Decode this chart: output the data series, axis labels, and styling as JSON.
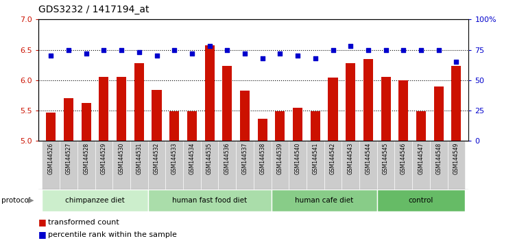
{
  "title": "GDS3232 / 1417194_at",
  "samples": [
    "GSM144526",
    "GSM144527",
    "GSM144528",
    "GSM144529",
    "GSM144530",
    "GSM144531",
    "GSM144532",
    "GSM144533",
    "GSM144534",
    "GSM144535",
    "GSM144536",
    "GSM144537",
    "GSM144538",
    "GSM144539",
    "GSM144540",
    "GSM144541",
    "GSM144542",
    "GSM144543",
    "GSM144544",
    "GSM144545",
    "GSM144546",
    "GSM144547",
    "GSM144548",
    "GSM144549"
  ],
  "bar_values": [
    5.47,
    5.7,
    5.62,
    6.06,
    6.06,
    6.28,
    5.84,
    5.49,
    5.49,
    6.57,
    6.23,
    5.83,
    5.37,
    5.49,
    5.55,
    5.49,
    6.04,
    6.28,
    6.35,
    6.06,
    6.0,
    5.49,
    5.9,
    6.23
  ],
  "dot_values": [
    70,
    75,
    72,
    75,
    75,
    73,
    70,
    75,
    72,
    78,
    75,
    72,
    68,
    72,
    70,
    68,
    75,
    78,
    75,
    75,
    75,
    75,
    75,
    65
  ],
  "bar_color": "#cc1100",
  "dot_color": "#0000cc",
  "ylim_left": [
    5.0,
    7.0
  ],
  "ylim_right": [
    0,
    100
  ],
  "yticks_left": [
    5.0,
    5.5,
    6.0,
    6.5,
    7.0
  ],
  "yticks_right": [
    0,
    25,
    50,
    75,
    100
  ],
  "groups": [
    {
      "label": "chimpanzee diet",
      "start": 0,
      "end": 6,
      "color": "#cceecc"
    },
    {
      "label": "human fast food diet",
      "start": 6,
      "end": 13,
      "color": "#aaddaa"
    },
    {
      "label": "human cafe diet",
      "start": 13,
      "end": 19,
      "color": "#88cc88"
    },
    {
      "label": "control",
      "start": 19,
      "end": 24,
      "color": "#66bb66"
    }
  ],
  "group_row_bg": "#cccccc",
  "protocol_label": "protocol",
  "legend_bar_label": "transformed count",
  "legend_dot_label": "percentile rank within the sample",
  "title_fontsize": 10,
  "axis_label_color_left": "#cc1100",
  "axis_label_color_right": "#0000cc"
}
